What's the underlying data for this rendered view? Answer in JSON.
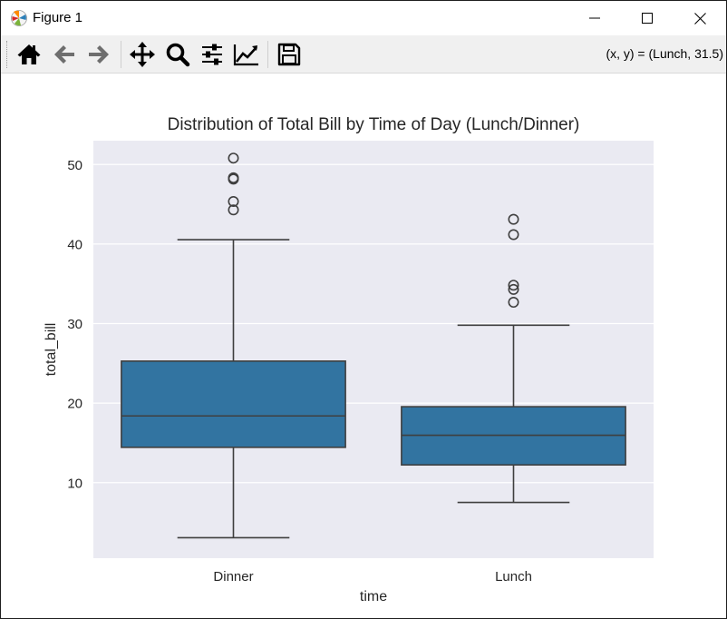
{
  "window": {
    "title": "Figure 1",
    "controls": [
      "minimize-icon",
      "maximize-icon",
      "close-icon"
    ]
  },
  "toolbar": {
    "buttons": [
      "home-icon",
      "back-arrow-icon",
      "forward-arrow-icon",
      "pan-icon",
      "zoom-icon",
      "configure-subplots-icon",
      "edit-axes-icon",
      "save-icon"
    ],
    "coords_readout": "(x, y) = (Lunch, 31.5)"
  },
  "chart_data": {
    "type": "box",
    "title": "Distribution of Total Bill by Time of Day (Lunch/Dinner)",
    "xlabel": "time",
    "ylabel": "total_bill",
    "categories": [
      "Dinner",
      "Lunch"
    ],
    "ylim": [
      0.5,
      53.0
    ],
    "yticks": [
      10,
      20,
      30,
      40,
      50
    ],
    "grid": true,
    "box_color": "#3274a1",
    "background_color": "#eaeaf2",
    "boxes": [
      {
        "category": "Dinner",
        "whisker_low": 3.07,
        "q1": 14.44,
        "median": 18.39,
        "q3": 25.28,
        "whisker_high": 40.55,
        "outliers": [
          44.3,
          45.35,
          48.17,
          48.27,
          48.33,
          50.81
        ]
      },
      {
        "category": "Lunch",
        "whisker_low": 7.51,
        "q1": 12.23,
        "median": 15.96,
        "q3": 19.55,
        "whisker_high": 29.8,
        "outliers": [
          32.68,
          34.3,
          34.83,
          41.19,
          43.11
        ]
      }
    ]
  }
}
